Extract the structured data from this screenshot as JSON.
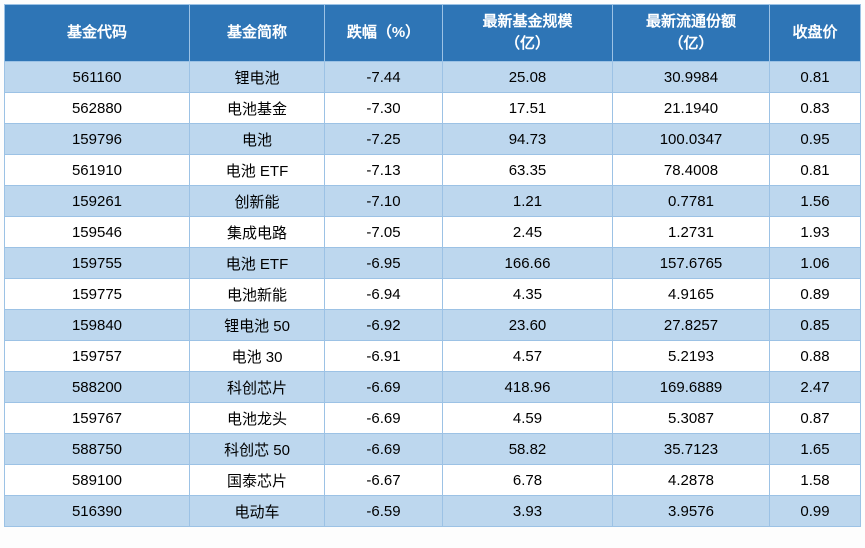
{
  "colors": {
    "header_bg": "#2E75B6",
    "row_alt_bg": "#BDD7EE",
    "row_bg": "#FFFFFF",
    "border": "#9CC2E5",
    "header_text": "#FFFFFF",
    "body_text": "#000000"
  },
  "chart_data": {
    "type": "table",
    "columns": [
      "基金代码",
      "基金简称",
      "跌幅（%）",
      "最新基金规模\n（亿）",
      "最新流通份额\n（亿）",
      "收盘价"
    ],
    "rows": [
      [
        "561160",
        "锂电池",
        "-7.44",
        "25.08",
        "30.9984",
        "0.81"
      ],
      [
        "562880",
        "电池基金",
        "-7.30",
        "17.51",
        "21.1940",
        "0.83"
      ],
      [
        "159796",
        "电池",
        "-7.25",
        "94.73",
        "100.0347",
        "0.95"
      ],
      [
        "561910",
        "电池 ETF",
        "-7.13",
        "63.35",
        "78.4008",
        "0.81"
      ],
      [
        "159261",
        "创新能",
        "-7.10",
        "1.21",
        "0.7781",
        "1.56"
      ],
      [
        "159546",
        "集成电路",
        "-7.05",
        "2.45",
        "1.2731",
        "1.93"
      ],
      [
        "159755",
        "电池 ETF",
        "-6.95",
        "166.66",
        "157.6765",
        "1.06"
      ],
      [
        "159775",
        "电池新能",
        "-6.94",
        "4.35",
        "4.9165",
        "0.89"
      ],
      [
        "159840",
        "锂电池 50",
        "-6.92",
        "23.60",
        "27.8257",
        "0.85"
      ],
      [
        "159757",
        "电池 30",
        "-6.91",
        "4.57",
        "5.2193",
        "0.88"
      ],
      [
        "588200",
        "科创芯片",
        "-6.69",
        "418.96",
        "169.6889",
        "2.47"
      ],
      [
        "159767",
        "电池龙头",
        "-6.69",
        "4.59",
        "5.3087",
        "0.87"
      ],
      [
        "588750",
        "科创芯 50",
        "-6.69",
        "58.82",
        "35.7123",
        "1.65"
      ],
      [
        "589100",
        "国泰芯片",
        "-6.67",
        "6.78",
        "4.2878",
        "1.58"
      ],
      [
        "516390",
        "电动车",
        "-6.59",
        "3.93",
        "3.9576",
        "0.99"
      ]
    ]
  }
}
